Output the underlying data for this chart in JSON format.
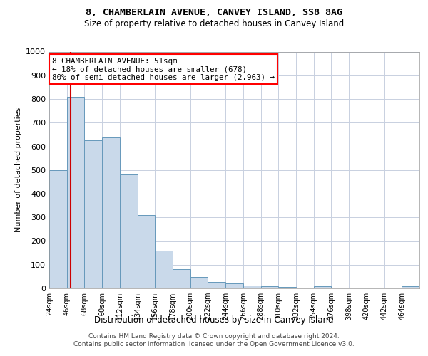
{
  "title": "8, CHAMBERLAIN AVENUE, CANVEY ISLAND, SS8 8AG",
  "subtitle": "Size of property relative to detached houses in Canvey Island",
  "xlabel": "Distribution of detached houses by size in Canvey Island",
  "ylabel": "Number of detached properties",
  "footer_line1": "Contains HM Land Registry data © Crown copyright and database right 2024.",
  "footer_line2": "Contains public sector information licensed under the Open Government Licence v3.0.",
  "annotation_line1": "8 CHAMBERLAIN AVENUE: 51sqm",
  "annotation_line2": "← 18% of detached houses are smaller (678)",
  "annotation_line3": "80% of semi-detached houses are larger (2,963) →",
  "property_size": 51,
  "bar_color": "#c9d9ea",
  "bar_edge_color": "#6699bb",
  "vline_color": "#cc0000",
  "grid_color": "#c8d0e0",
  "bg_color": "#ffffff",
  "ylim": [
    0,
    1000
  ],
  "yticks": [
    0,
    100,
    200,
    300,
    400,
    500,
    600,
    700,
    800,
    900,
    1000
  ],
  "bin_labels": [
    "24sqm",
    "46sqm",
    "68sqm",
    "90sqm",
    "112sqm",
    "134sqm",
    "156sqm",
    "178sqm",
    "200sqm",
    "222sqm",
    "244sqm",
    "266sqm",
    "288sqm",
    "310sqm",
    "332sqm",
    "354sqm",
    "376sqm",
    "398sqm",
    "420sqm",
    "442sqm",
    "464sqm"
  ],
  "bin_edges": [
    24,
    46,
    68,
    90,
    112,
    134,
    156,
    178,
    200,
    222,
    244,
    266,
    288,
    310,
    332,
    354,
    376,
    398,
    420,
    442,
    464,
    486
  ],
  "bar_values": [
    500,
    810,
    625,
    638,
    480,
    310,
    160,
    80,
    48,
    27,
    22,
    12,
    8,
    5,
    2,
    8,
    0,
    0,
    0,
    0,
    10
  ]
}
